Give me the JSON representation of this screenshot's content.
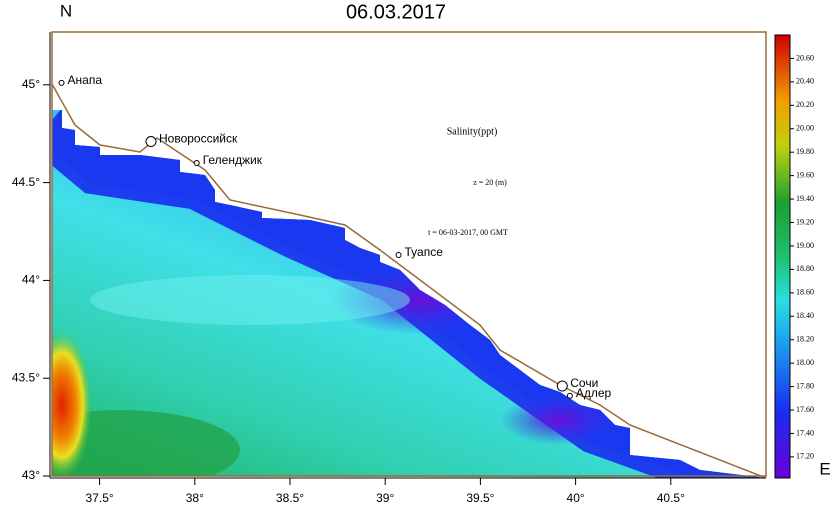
{
  "map": {
    "title": "06.03.2017",
    "north_label": "N",
    "east_label": "E",
    "xlim": [
      37.25,
      41.0
    ],
    "ylim": [
      43.0,
      45.27
    ],
    "xticks": [
      {
        "value": 37.5,
        "label": "37.5°"
      },
      {
        "value": 38,
        "label": "38°"
      },
      {
        "value": 38.5,
        "label": "38.5°"
      },
      {
        "value": 39,
        "label": "39°"
      },
      {
        "value": 39.5,
        "label": "39.5°"
      },
      {
        "value": 40,
        "label": "40°"
      },
      {
        "value": 40.5,
        "label": "40.5°"
      }
    ],
    "yticks": [
      {
        "value": 43,
        "label": "43°"
      },
      {
        "value": 43.5,
        "label": "43.5°"
      },
      {
        "value": 44,
        "label": "44°"
      },
      {
        "value": 44.5,
        "label": "44.5°"
      },
      {
        "value": 45,
        "label": "45°"
      }
    ],
    "annotations": [
      "Salinity(ppt)",
      "z = 20 (m)",
      "t = 06-03-2017, 00 GMT"
    ],
    "cities": [
      {
        "name": "Анапа",
        "lon": 37.3,
        "lat": 45.01,
        "marker": "small"
      },
      {
        "name": "Новороссийск",
        "lon": 37.77,
        "lat": 44.71,
        "marker": "large"
      },
      {
        "name": "Геленджик",
        "lon": 38.01,
        "lat": 44.6,
        "marker": "small"
      },
      {
        "name": "Туапсе",
        "lon": 39.07,
        "lat": 44.13,
        "marker": "small"
      },
      {
        "name": "Сочи",
        "lon": 39.93,
        "lat": 43.46,
        "marker": "large"
      },
      {
        "name": "Адлер",
        "lon": 39.97,
        "lat": 43.41,
        "marker": "small"
      }
    ],
    "colorbar": {
      "lim": [
        17.02,
        20.8
      ],
      "ticks": [
        {
          "value": 17.2,
          "label": "17.20"
        },
        {
          "value": 17.4,
          "label": "17.40"
        },
        {
          "value": 17.6,
          "label": "17.60"
        },
        {
          "value": 17.8,
          "label": "17.80"
        },
        {
          "value": 18,
          "label": "18.00"
        },
        {
          "value": 18.2,
          "label": "18.20"
        },
        {
          "value": 18.4,
          "label": "18.40"
        },
        {
          "value": 18.6,
          "label": "18.60"
        },
        {
          "value": 18.8,
          "label": "18.80"
        },
        {
          "value": 19,
          "label": "19.00"
        },
        {
          "value": 19.2,
          "label": "19.20"
        },
        {
          "value": 19.4,
          "label": "19.40"
        },
        {
          "value": 19.6,
          "label": "19.60"
        },
        {
          "value": 19.8,
          "label": "19.80"
        },
        {
          "value": 20,
          "label": "20.00"
        },
        {
          "value": 20.2,
          "label": "20.20"
        },
        {
          "value": 20.4,
          "label": "20.40"
        },
        {
          "value": 20.6,
          "label": "20.60"
        }
      ]
    }
  }
}
